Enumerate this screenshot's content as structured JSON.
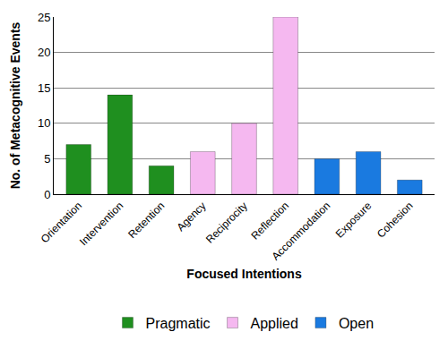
{
  "chart_data": {
    "type": "bar",
    "x_label": "Focused Intentions",
    "y_label": "No. of Metacognitive Events",
    "categories": [
      "Orientation",
      "Intervention",
      "Retention",
      "Agency",
      "Reciprocity",
      "Reflection",
      "Accommodation",
      "Exposure",
      "Cohesion"
    ],
    "series": [
      {
        "name": "Pragmatic",
        "color": "#1f8f1f",
        "values": [
          7,
          14,
          4,
          null,
          null,
          null,
          null,
          null,
          null
        ]
      },
      {
        "name": "Applied",
        "color": "#f5b8f0",
        "values": [
          null,
          null,
          null,
          6,
          10,
          25,
          null,
          null,
          null
        ]
      },
      {
        "name": "Open",
        "color": "#1a7ae0",
        "values": [
          null,
          null,
          null,
          null,
          null,
          null,
          5,
          6,
          2
        ]
      }
    ],
    "ylim": [
      0,
      25
    ],
    "yticks": [
      0,
      5,
      10,
      15,
      20,
      25
    ],
    "grid": true,
    "legend": "bottom"
  }
}
